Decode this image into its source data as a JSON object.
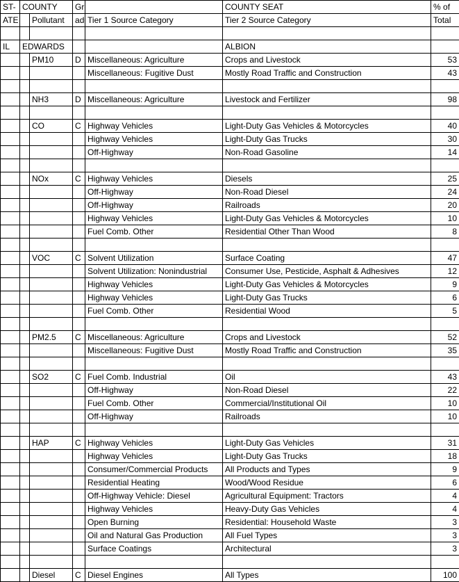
{
  "headers": {
    "r1": {
      "state": "ST-",
      "county": "COUNTY",
      "grade": "Gr-",
      "tier1": "",
      "tier2": "COUNTY SEAT",
      "pct": "% of"
    },
    "r2": {
      "state": "ATE",
      "pollutant": "Pollutant",
      "grade": "ade",
      "tier1": "Tier 1 Source Category",
      "tier2": "Tier 2 Source Category",
      "pct": "Total"
    }
  },
  "rows": [
    {
      "state": "",
      "blank": "",
      "county": "",
      "grade": "",
      "tier1": "",
      "tier2": "",
      "pct": ""
    },
    {
      "state": "IL",
      "blank": "",
      "county": "EDWARDS",
      "grade": "",
      "tier1": "",
      "tier2": "ALBION",
      "pct": "",
      "countySpan": true
    },
    {
      "state": "",
      "blank": "",
      "county": "PM10",
      "grade": "D",
      "tier1": "Miscellaneous: Agriculture",
      "tier2": "Crops and Livestock",
      "pct": "53"
    },
    {
      "state": "",
      "blank": "",
      "county": "",
      "grade": "",
      "tier1": "Miscellaneous: Fugitive Dust",
      "tier2": "Mostly Road Traffic and Construction",
      "pct": "43"
    },
    {
      "state": "",
      "blank": "",
      "county": "",
      "grade": "",
      "tier1": "",
      "tier2": "",
      "pct": ""
    },
    {
      "state": "",
      "blank": "",
      "county": "NH3",
      "grade": "D",
      "tier1": "Miscellaneous: Agriculture",
      "tier2": "Livestock and Fertilizer",
      "pct": "98"
    },
    {
      "state": "",
      "blank": "",
      "county": "",
      "grade": "",
      "tier1": "",
      "tier2": "",
      "pct": ""
    },
    {
      "state": "",
      "blank": "",
      "county": "CO",
      "grade": "C",
      "tier1": "Highway Vehicles",
      "tier2": "Light-Duty Gas Vehicles & Motorcycles",
      "pct": "40"
    },
    {
      "state": "",
      "blank": "",
      "county": "",
      "grade": "",
      "tier1": "Highway Vehicles",
      "tier2": "Light-Duty Gas Trucks",
      "pct": "30"
    },
    {
      "state": "",
      "blank": "",
      "county": "",
      "grade": "",
      "tier1": "Off-Highway",
      "tier2": "Non-Road Gasoline",
      "pct": "14"
    },
    {
      "state": "",
      "blank": "",
      "county": "",
      "grade": "",
      "tier1": "",
      "tier2": "",
      "pct": ""
    },
    {
      "state": "",
      "blank": "",
      "county": "NOx",
      "grade": "C",
      "tier1": "Highway Vehicles",
      "tier2": "Diesels",
      "pct": "25"
    },
    {
      "state": "",
      "blank": "",
      "county": "",
      "grade": "",
      "tier1": "Off-Highway",
      "tier2": "Non-Road Diesel",
      "pct": "24"
    },
    {
      "state": "",
      "blank": "",
      "county": "",
      "grade": "",
      "tier1": "Off-Highway",
      "tier2": "Railroads",
      "pct": "20"
    },
    {
      "state": "",
      "blank": "",
      "county": "",
      "grade": "",
      "tier1": "Highway Vehicles",
      "tier2": "Light-Duty Gas Vehicles & Motorcycles",
      "pct": "10"
    },
    {
      "state": "",
      "blank": "",
      "county": "",
      "grade": "",
      "tier1": "Fuel Comb. Other",
      "tier2": "Residential Other Than Wood",
      "pct": "8"
    },
    {
      "state": "",
      "blank": "",
      "county": "",
      "grade": "",
      "tier1": "",
      "tier2": "",
      "pct": ""
    },
    {
      "state": "",
      "blank": "",
      "county": "VOC",
      "grade": "C",
      "tier1": "Solvent Utilization",
      "tier2": "Surface Coating",
      "pct": "47"
    },
    {
      "state": "",
      "blank": "",
      "county": "",
      "grade": "",
      "tier1": "Solvent Utilization: Nonindustrial",
      "tier2": "Consumer Use, Pesticide, Asphalt & Adhesives",
      "pct": "12"
    },
    {
      "state": "",
      "blank": "",
      "county": "",
      "grade": "",
      "tier1": "Highway Vehicles",
      "tier2": "Light-Duty Gas Vehicles & Motorcycles",
      "pct": "9"
    },
    {
      "state": "",
      "blank": "",
      "county": "",
      "grade": "",
      "tier1": "Highway Vehicles",
      "tier2": "Light-Duty Gas Trucks",
      "pct": "6"
    },
    {
      "state": "",
      "blank": "",
      "county": "",
      "grade": "",
      "tier1": "Fuel Comb. Other",
      "tier2": "Residential Wood",
      "pct": "5"
    },
    {
      "state": "",
      "blank": "",
      "county": "",
      "grade": "",
      "tier1": "",
      "tier2": "",
      "pct": ""
    },
    {
      "state": "",
      "blank": "",
      "county": "PM2.5",
      "grade": "C",
      "tier1": "Miscellaneous: Agriculture",
      "tier2": "Crops and Livestock",
      "pct": "52"
    },
    {
      "state": "",
      "blank": "",
      "county": "",
      "grade": "",
      "tier1": "Miscellaneous: Fugitive Dust",
      "tier2": "Mostly Road Traffic and Construction",
      "pct": "35"
    },
    {
      "state": "",
      "blank": "",
      "county": "",
      "grade": "",
      "tier1": "",
      "tier2": "",
      "pct": ""
    },
    {
      "state": "",
      "blank": "",
      "county": "SO2",
      "grade": "C",
      "tier1": "Fuel Comb. Industrial",
      "tier2": "Oil",
      "pct": "43"
    },
    {
      "state": "",
      "blank": "",
      "county": "",
      "grade": "",
      "tier1": "Off-Highway",
      "tier2": "Non-Road Diesel",
      "pct": "22"
    },
    {
      "state": "",
      "blank": "",
      "county": "",
      "grade": "",
      "tier1": "Fuel Comb. Other",
      "tier2": "Commercial/Institutional Oil",
      "pct": "10"
    },
    {
      "state": "",
      "blank": "",
      "county": "",
      "grade": "",
      "tier1": "Off-Highway",
      "tier2": "Railroads",
      "pct": "10"
    },
    {
      "state": "",
      "blank": "",
      "county": "",
      "grade": "",
      "tier1": "",
      "tier2": "",
      "pct": ""
    },
    {
      "state": "",
      "blank": "",
      "county": "HAP",
      "grade": "C",
      "tier1": "Highway Vehicles",
      "tier2": "Light-Duty Gas Vehicles",
      "pct": "31"
    },
    {
      "state": "",
      "blank": "",
      "county": "",
      "grade": "",
      "tier1": "Highway Vehicles",
      "tier2": "Light-Duty Gas Trucks",
      "pct": "18"
    },
    {
      "state": "",
      "blank": "",
      "county": "",
      "grade": "",
      "tier1": "Consumer/Commercial Products",
      "tier2": "All Products and Types",
      "pct": "9"
    },
    {
      "state": "",
      "blank": "",
      "county": "",
      "grade": "",
      "tier1": "Residential Heating",
      "tier2": "Wood/Wood Residue",
      "pct": "6"
    },
    {
      "state": "",
      "blank": "",
      "county": "",
      "grade": "",
      "tier1": "Off-Highway Vehicle: Diesel",
      "tier2": "Agricultural Equipment: Tractors",
      "pct": "4"
    },
    {
      "state": "",
      "blank": "",
      "county": "",
      "grade": "",
      "tier1": "Highway Vehicles",
      "tier2": "Heavy-Duty Gas Vehicles",
      "pct": "4"
    },
    {
      "state": "",
      "blank": "",
      "county": "",
      "grade": "",
      "tier1": "Open Burning",
      "tier2": "Residential: Household Waste",
      "pct": "3"
    },
    {
      "state": "",
      "blank": "",
      "county": "",
      "grade": "",
      "tier1": "Oil and Natural Gas Production",
      "tier2": "All Fuel Types",
      "pct": "3"
    },
    {
      "state": "",
      "blank": "",
      "county": "",
      "grade": "",
      "tier1": "Surface Coatings",
      "tier2": "Architectural",
      "pct": "3"
    },
    {
      "state": "",
      "blank": "",
      "county": "",
      "grade": "",
      "tier1": "",
      "tier2": "",
      "pct": ""
    },
    {
      "state": "",
      "blank": "",
      "county": "Diesel",
      "grade": "C",
      "tier1": "Diesel Engines",
      "tier2": "All Types",
      "pct": "100"
    }
  ]
}
